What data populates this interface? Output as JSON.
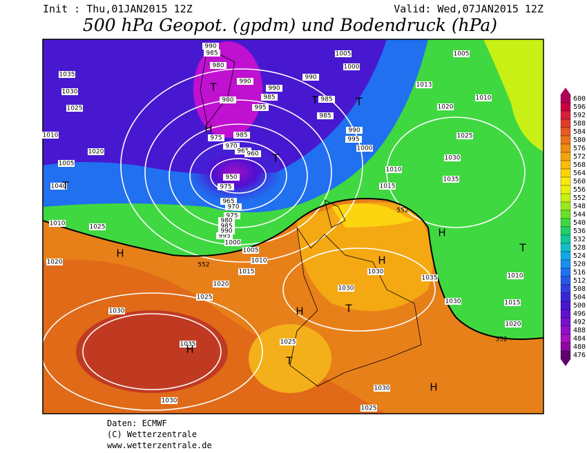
{
  "header": {
    "init": "Init : Thu,01JAN2015 12Z",
    "valid": "Valid: Wed,07JAN2015 12Z",
    "title": "500 hPa Geopot. (gpdm) und Bodendruck (hPa)"
  },
  "legend": {
    "labels": [
      600,
      596,
      592,
      588,
      584,
      580,
      576,
      572,
      568,
      564,
      560,
      556,
      552,
      548,
      544,
      540,
      536,
      532,
      528,
      524,
      520,
      516,
      512,
      508,
      504,
      500,
      496,
      492,
      488,
      484,
      480,
      476
    ],
    "colors": [
      "#b0005a",
      "#c80040",
      "#d8203c",
      "#e03c28",
      "#e85a20",
      "#ec7418",
      "#f08c10",
      "#f4a40c",
      "#f8bc0c",
      "#fcd408",
      "#fce80c",
      "#e8f00c",
      "#c8f014",
      "#98e81c",
      "#68e028",
      "#40d840",
      "#20d068",
      "#10c898",
      "#10c0c8",
      "#10a8e8",
      "#1890f0",
      "#2070f0",
      "#2858e8",
      "#3040e0",
      "#3828d8",
      "#4818d0",
      "#6010d0",
      "#7810d0",
      "#9010c8",
      "#a810c0",
      "#9008a0",
      "#600070"
    ]
  },
  "map": {
    "isobar_labels": [
      990,
      985,
      980,
      990,
      990,
      985,
      995,
      980,
      990,
      985,
      985,
      1005,
      1000,
      1005,
      1013,
      1020,
      1010,
      990,
      995,
      1000,
      1010,
      1015,
      1025,
      1030,
      1035,
      1035,
      1030,
      1025,
      1010,
      1020,
      1005,
      1040,
      1010,
      1025,
      1020,
      1020,
      1025,
      1015,
      1010,
      1005,
      1000,
      995,
      985,
      975,
      970,
      965,
      960,
      950,
      975,
      965,
      970,
      975,
      980,
      985,
      990,
      1030,
      1030,
      1035,
      1030,
      1015,
      1010,
      1020,
      1030,
      1030,
      1025,
      1030,
      1025,
      1035
    ],
    "isohypse_labels": [
      552,
      552,
      552
    ],
    "centers": [
      "T",
      "H",
      "T",
      "T",
      "T",
      "T",
      "H",
      "H",
      "T",
      "H",
      "T",
      "H",
      "T",
      "H",
      "H"
    ]
  },
  "footer": {
    "source": "Daten: ECMWF",
    "copyright": "(C) Wetterzentrale",
    "url": "www.wetterzentrale.de"
  }
}
